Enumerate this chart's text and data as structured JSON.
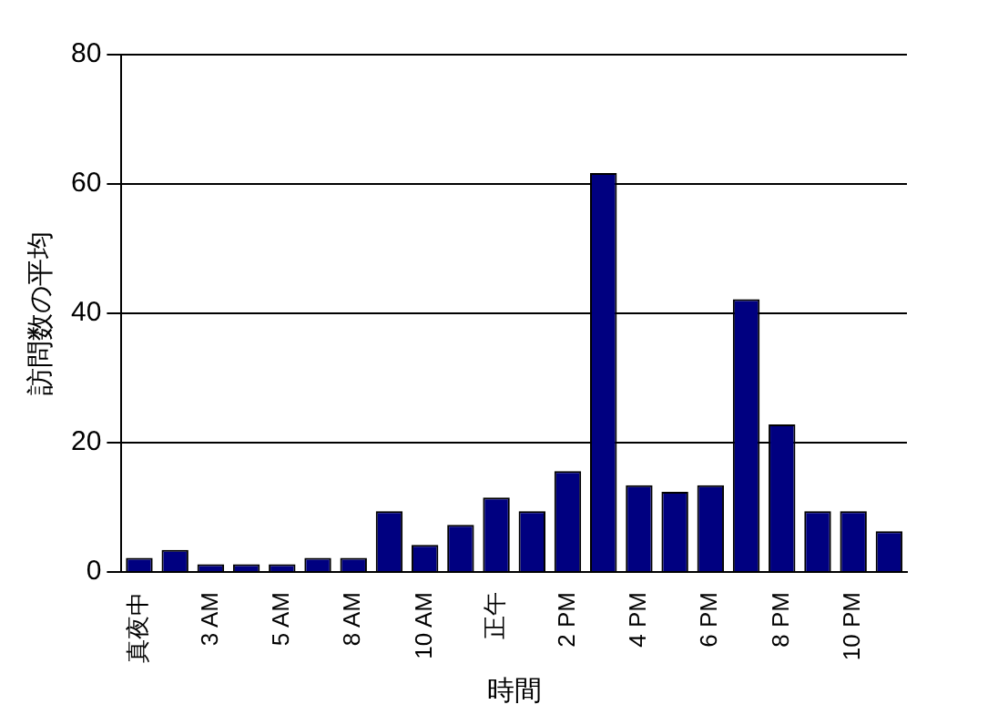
{
  "chart_data": {
    "type": "bar",
    "xlabel": "時間",
    "ylabel": "訪問数の平均",
    "categories": [
      "真夜中",
      null,
      "3 AM",
      null,
      "5 AM",
      null,
      "8 AM",
      null,
      "10 AM",
      null,
      "正午",
      null,
      "2 PM",
      null,
      "4 PM",
      null,
      "6 PM",
      null,
      "8 PM",
      null,
      "10 PM",
      null
    ],
    "values": [
      2.2,
      3.4,
      1.2,
      1.2,
      1.2,
      2.2,
      2.2,
      9.4,
      4.2,
      7.3,
      11.5,
      9.4,
      15.6,
      61.7,
      13.4,
      12.4,
      13.4,
      42.2,
      22.8,
      9.4,
      9.4,
      6.3
    ],
    "color": "#000080",
    "ylim": [
      0,
      80
    ],
    "yticks": [
      0,
      20,
      40,
      60,
      80
    ],
    "grid": "y",
    "legend": false
  }
}
